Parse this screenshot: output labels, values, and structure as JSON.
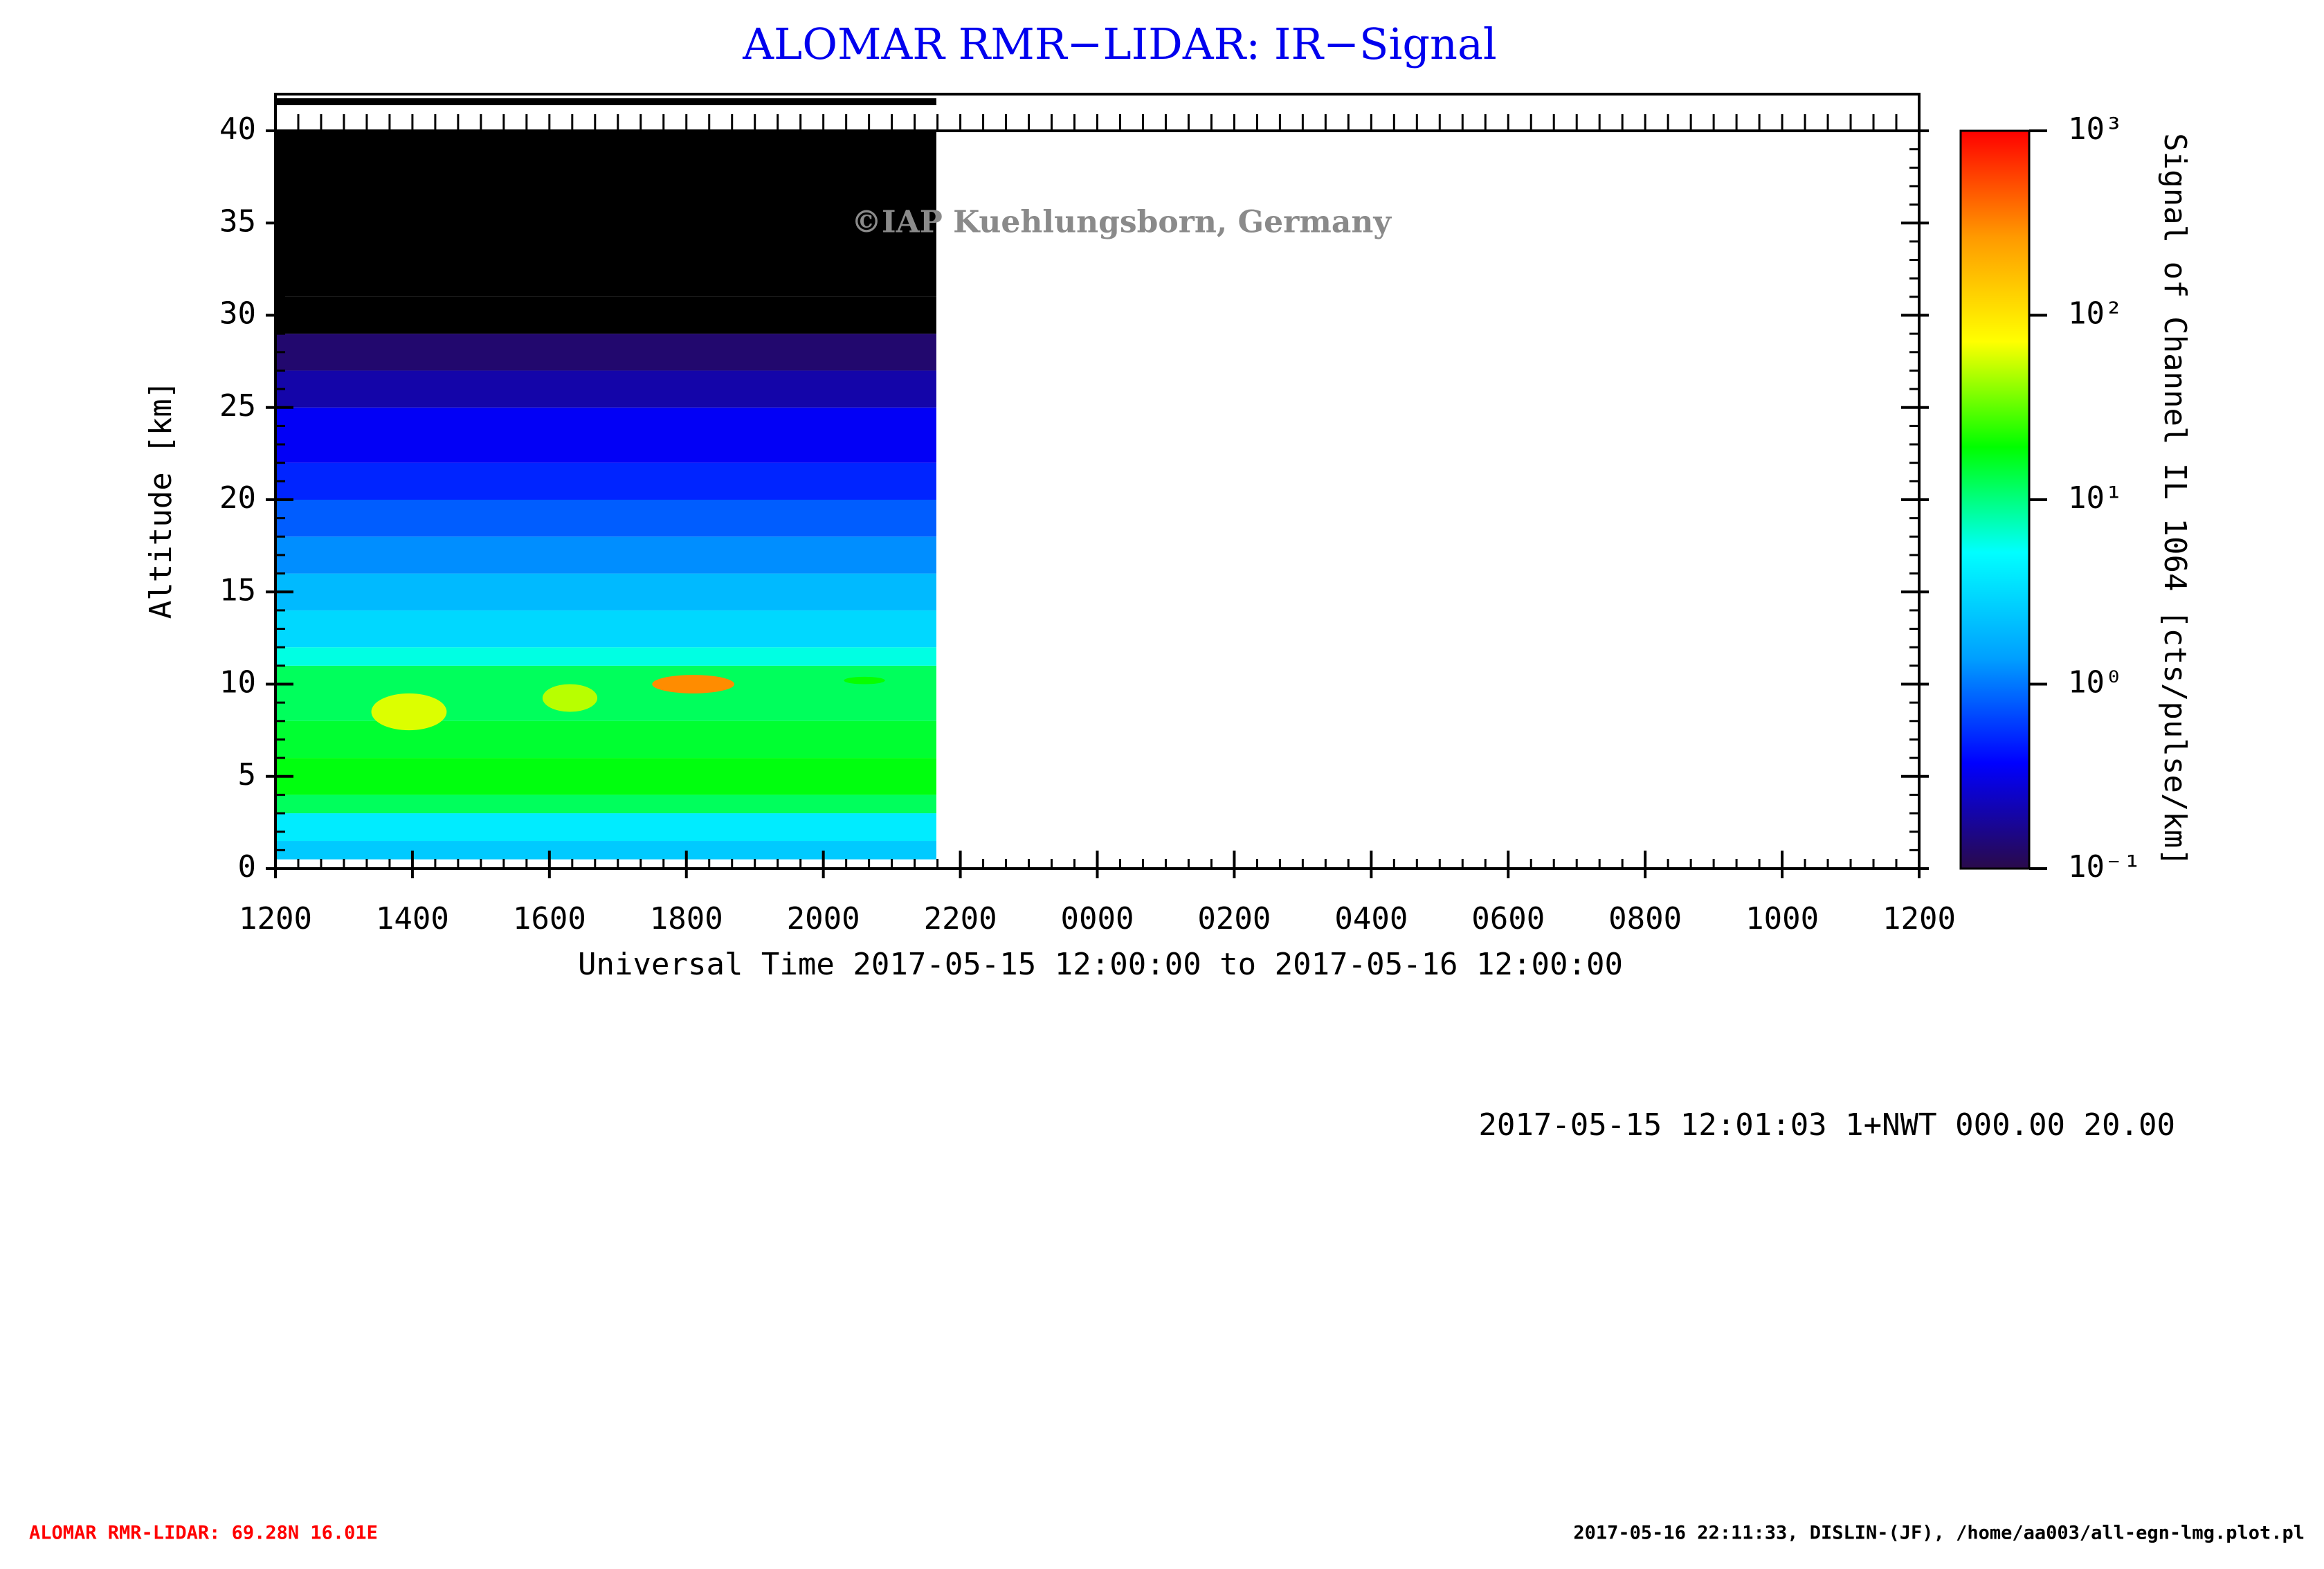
{
  "chart_data": {
    "type": "heatmap",
    "title": "ALOMAR RMR−LIDAR: IR−Signal",
    "watermark": "©IAP Kuehlungsborn, Germany",
    "ylabel": "Altitude [km]",
    "xlabel": "Universal Time 2017-05-15 12:00:00 to 2017-05-16 12:00:00",
    "colorbar_label": "Signal of Channel IL 1064 [cts/pulse/km]",
    "info": "2017-05-15 12:01:03 1+NWT 000.00 20.00",
    "footer_left": "ALOMAR RMR-LIDAR: 69.28N 16.01E",
    "footer_right": "2017-05-16 22:11:33, DISLIN-(JF), /home/aa003/all-egn-lmg.plot.pl",
    "xlim": [
      12,
      36
    ],
    "xticks": [
      {
        "value": 12,
        "label": "1200"
      },
      {
        "value": 14,
        "label": "1400"
      },
      {
        "value": 16,
        "label": "1600"
      },
      {
        "value": 18,
        "label": "1800"
      },
      {
        "value": 20,
        "label": "2000"
      },
      {
        "value": 22,
        "label": "2200"
      },
      {
        "value": 24,
        "label": "0000"
      },
      {
        "value": 26,
        "label": "0200"
      },
      {
        "value": 28,
        "label": "0400"
      },
      {
        "value": 30,
        "label": "0600"
      },
      {
        "value": 32,
        "label": "0800"
      },
      {
        "value": 34,
        "label": "1000"
      },
      {
        "value": 36,
        "label": "1200"
      }
    ],
    "ylim": [
      0,
      40
    ],
    "yticks": [
      0,
      5,
      10,
      15,
      20,
      25,
      30,
      35,
      40
    ],
    "coverage": [
      12,
      21.65
    ],
    "altitude_edges": [
      0.5,
      1.5,
      3,
      4,
      6,
      8,
      11,
      12,
      14,
      16,
      18,
      20,
      22,
      25,
      27,
      29,
      31,
      40
    ],
    "values": [
      2.5,
      4,
      12,
      18,
      15,
      12,
      6,
      3,
      2,
      1.2,
      0.8,
      0.5,
      0.35,
      0.2,
      0.13,
      0.09,
      0.05
    ],
    "patches": [
      {
        "x": [
          13.4,
          14.5
        ],
        "y": [
          7.5,
          9.5
        ],
        "value": 60
      },
      {
        "x": [
          15.9,
          16.7
        ],
        "y": [
          8.5,
          10
        ],
        "value": 50
      },
      {
        "x": [
          17.5,
          18.7
        ],
        "y": [
          9.5,
          10.5
        ],
        "value": 300
      },
      {
        "x": [
          20.3,
          20.9
        ],
        "y": [
          10,
          10.4
        ],
        "value": 20
      }
    ],
    "clim": [
      0.1,
      1000
    ],
    "log_color": true,
    "under_color": "#000000",
    "colors": [
      "#2a0a4a",
      "#0000ff",
      "#00a0ff",
      "#00ffff",
      "#00ff00",
      "#ffff00",
      "#ff9900",
      "#ff0000"
    ],
    "cticks": [
      {
        "value": 0.1,
        "label": "10⁻¹"
      },
      {
        "value": 1,
        "label": "10⁰"
      },
      {
        "value": 10,
        "label": "10¹"
      },
      {
        "value": 100,
        "label": "10²"
      },
      {
        "value": 1000,
        "label": "10³"
      }
    ]
  }
}
